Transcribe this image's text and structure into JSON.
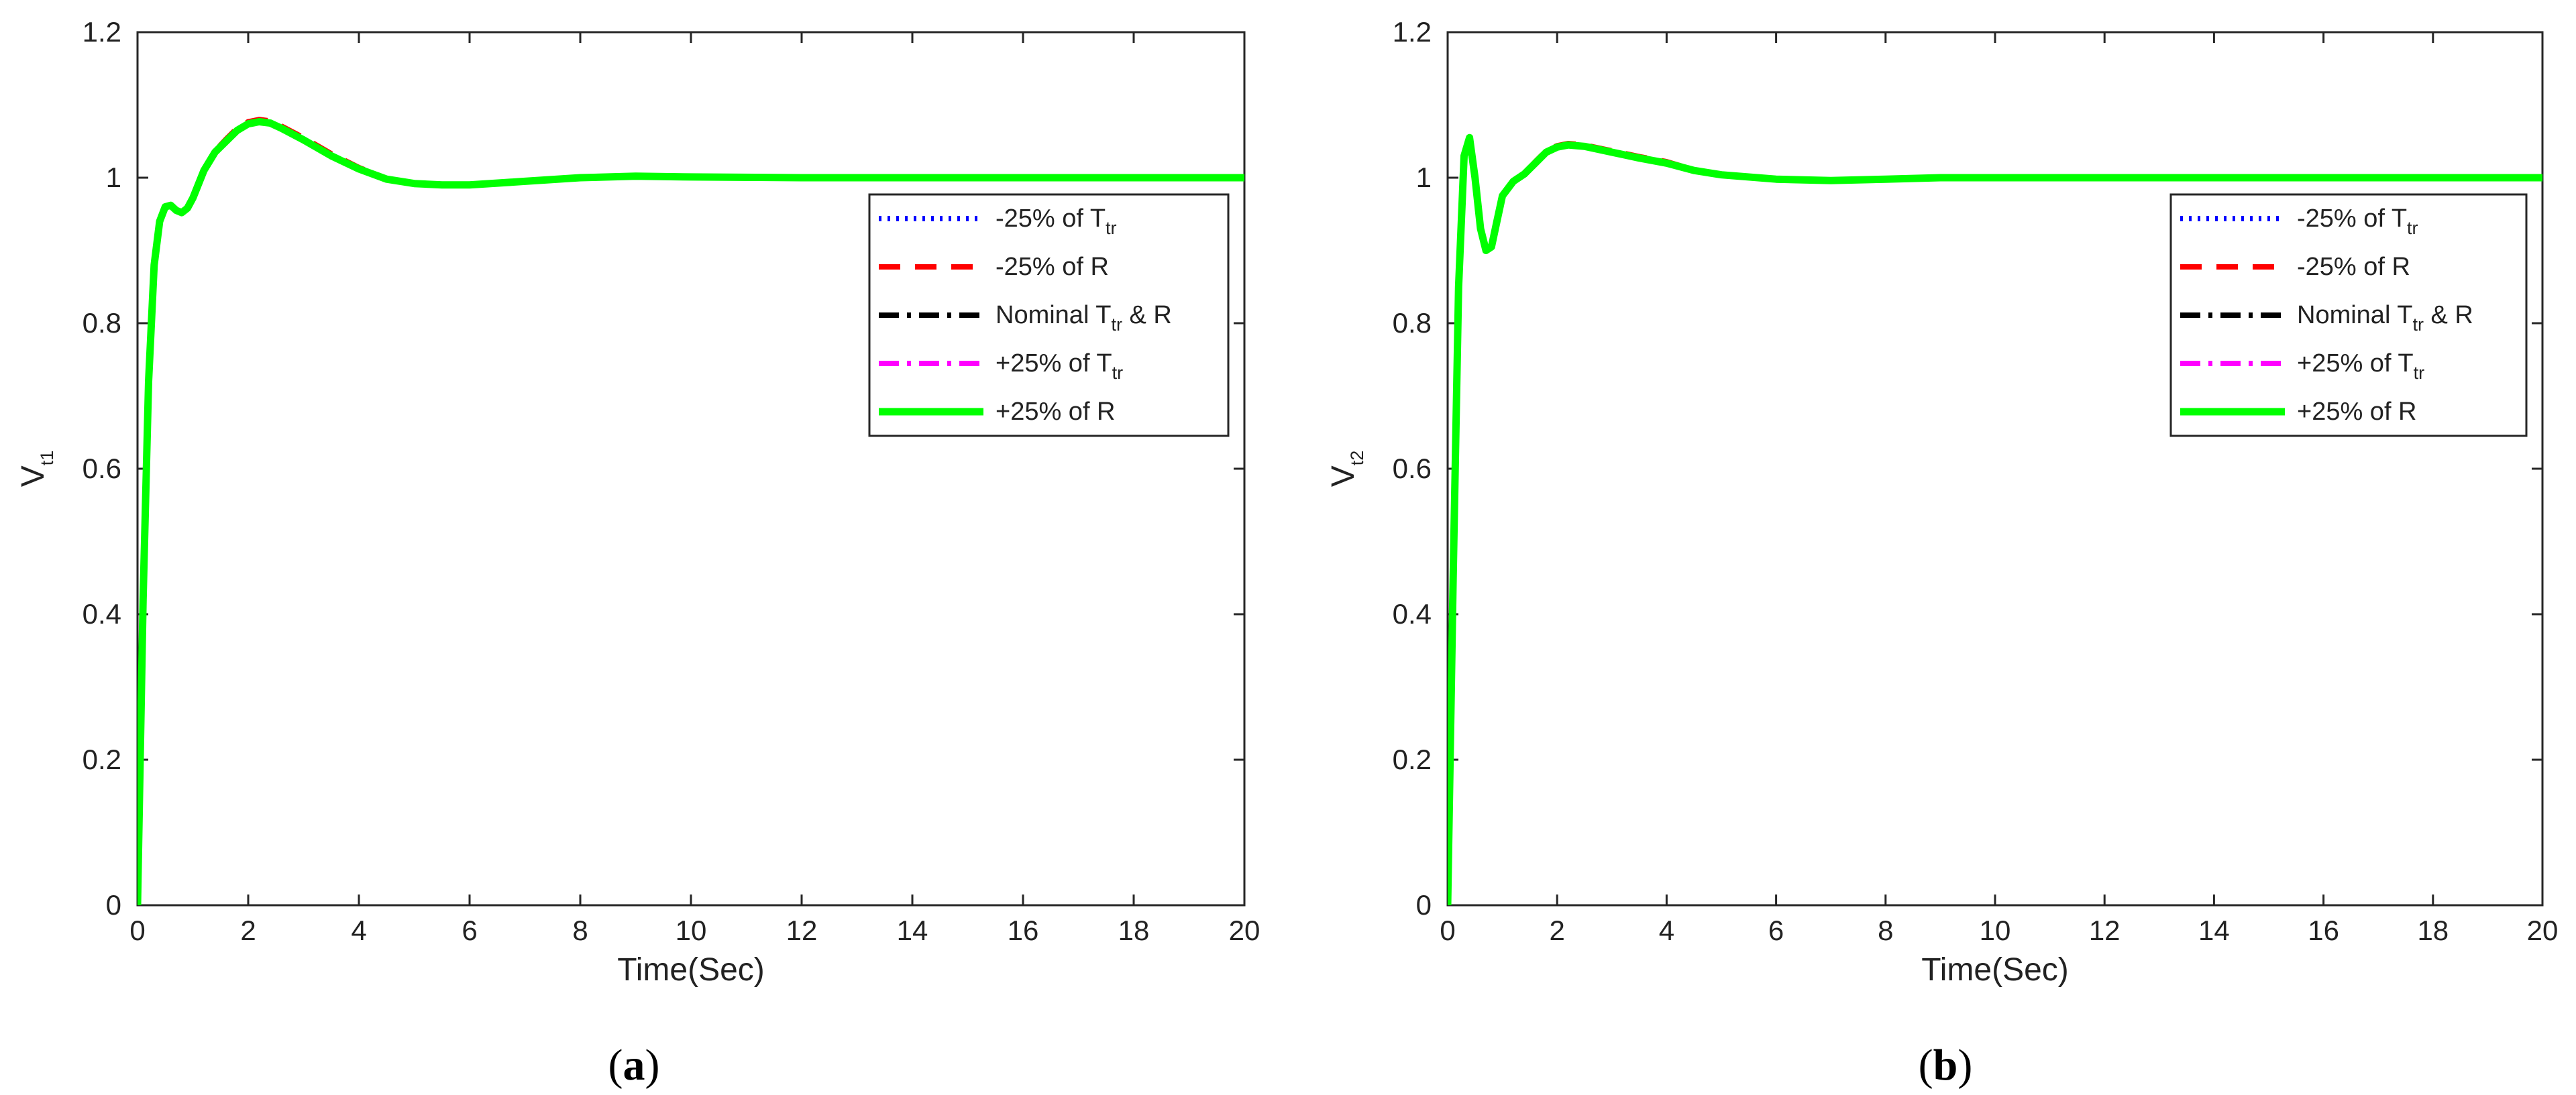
{
  "chart_data": [
    {
      "type": "line",
      "panel_label": "a",
      "xlabel": "Time(Sec)",
      "ylabel": {
        "main": "V",
        "sub": "t1"
      },
      "xlim": [
        0,
        20
      ],
      "ylim": [
        0,
        1.2
      ],
      "xticks": [
        0,
        2,
        4,
        6,
        8,
        10,
        12,
        14,
        16,
        18,
        20
      ],
      "yticks": [
        0,
        0.2,
        0.4,
        0.6,
        0.8,
        1,
        1.2
      ],
      "ytick_labels": [
        "0",
        "0.2",
        "0.4",
        "0.6",
        "0.8",
        "1",
        "1.2"
      ],
      "grid": false,
      "legend_position": "right",
      "legend": [
        {
          "main": "-25% of T",
          "sub": "tr",
          "suffix": "",
          "color": "#0000ff",
          "style": "dotted"
        },
        {
          "main": "-25% of R",
          "sub": "",
          "suffix": "",
          "color": "#ff0000",
          "style": "dashed"
        },
        {
          "main": "Nominal T",
          "sub": "tr",
          "suffix": " & R",
          "color": "#000000",
          "style": "dashdot"
        },
        {
          "main": "+25% of T",
          "sub": "tr",
          "suffix": "",
          "color": "#ff00ff",
          "style": "dashdot"
        },
        {
          "main": "+25% of R",
          "sub": "",
          "suffix": "",
          "color": "#00ff00",
          "style": "solid"
        }
      ],
      "series": [
        {
          "color": "#0000ff",
          "style": "dotted",
          "x": [
            0,
            0.1,
            0.2,
            0.3,
            0.4,
            0.5,
            0.6,
            0.7,
            0.8,
            0.9,
            1.0,
            1.2,
            1.4,
            1.6,
            1.8,
            2.0,
            2.2,
            2.4,
            2.6,
            3.0,
            3.5,
            4.0,
            4.5,
            5.0,
            5.5,
            6.0,
            7.0,
            8.0,
            9.0,
            10,
            12,
            14,
            16,
            18,
            20
          ],
          "y": [
            0,
            0.42,
            0.72,
            0.88,
            0.94,
            0.96,
            0.962,
            0.955,
            0.952,
            0.958,
            0.972,
            1.01,
            1.035,
            1.05,
            1.065,
            1.074,
            1.077,
            1.075,
            1.068,
            1.052,
            1.03,
            1.012,
            0.998,
            0.992,
            0.99,
            0.99,
            0.995,
            1.0,
            1.002,
            1.001,
            1.0,
            1.0,
            1.0,
            1.0,
            1.0
          ]
        },
        {
          "color": "#ff0000",
          "style": "dashed",
          "x": [
            0,
            0.1,
            0.2,
            0.3,
            0.4,
            0.5,
            0.6,
            0.7,
            0.8,
            0.9,
            1.0,
            1.2,
            1.4,
            1.6,
            1.8,
            2.0,
            2.2,
            2.4,
            2.6,
            3.0,
            3.5,
            4.0,
            4.5,
            5.0,
            5.5,
            6.0,
            7.0,
            8.0,
            9.0,
            10,
            12,
            14,
            16,
            18,
            20
          ],
          "y": [
            0,
            0.42,
            0.72,
            0.88,
            0.94,
            0.96,
            0.962,
            0.955,
            0.952,
            0.958,
            0.972,
            1.01,
            1.037,
            1.053,
            1.068,
            1.077,
            1.08,
            1.078,
            1.071,
            1.055,
            1.033,
            1.014,
            0.999,
            0.992,
            0.99,
            0.99,
            0.995,
            1.0,
            1.002,
            1.001,
            1.0,
            1.0,
            1.0,
            1.0,
            1.0
          ]
        },
        {
          "color": "#000000",
          "style": "dashdot",
          "x": [
            0,
            0.1,
            0.2,
            0.3,
            0.4,
            0.5,
            0.6,
            0.7,
            0.8,
            0.9,
            1.0,
            1.2,
            1.4,
            1.6,
            1.8,
            2.0,
            2.2,
            2.4,
            2.6,
            3.0,
            3.5,
            4.0,
            4.5,
            5.0,
            5.5,
            6.0,
            7.0,
            8.0,
            9.0,
            10,
            12,
            14,
            16,
            18,
            20
          ],
          "y": [
            0,
            0.42,
            0.72,
            0.88,
            0.94,
            0.96,
            0.962,
            0.955,
            0.952,
            0.958,
            0.972,
            1.01,
            1.035,
            1.051,
            1.066,
            1.075,
            1.078,
            1.076,
            1.069,
            1.053,
            1.031,
            1.013,
            0.998,
            0.992,
            0.99,
            0.99,
            0.995,
            1.0,
            1.002,
            1.001,
            1.0,
            1.0,
            1.0,
            1.0,
            1.0
          ]
        },
        {
          "color": "#ff00ff",
          "style": "dashdot",
          "x": [
            0,
            0.1,
            0.2,
            0.3,
            0.4,
            0.5,
            0.6,
            0.7,
            0.8,
            0.9,
            1.0,
            1.2,
            1.4,
            1.6,
            1.8,
            2.0,
            2.2,
            2.4,
            2.6,
            3.0,
            3.5,
            4.0,
            4.5,
            5.0,
            5.5,
            6.0,
            7.0,
            8.0,
            9.0,
            10,
            12,
            14,
            16,
            18,
            20
          ],
          "y": [
            0,
            0.42,
            0.72,
            0.88,
            0.94,
            0.96,
            0.962,
            0.955,
            0.952,
            0.958,
            0.972,
            1.01,
            1.034,
            1.05,
            1.064,
            1.073,
            1.076,
            1.074,
            1.067,
            1.051,
            1.029,
            1.011,
            0.997,
            0.992,
            0.99,
            0.99,
            0.995,
            1.0,
            1.002,
            1.001,
            1.0,
            1.0,
            1.0,
            1.0,
            1.0
          ]
        },
        {
          "color": "#00ff00",
          "style": "solid",
          "x": [
            0,
            0.1,
            0.2,
            0.3,
            0.4,
            0.5,
            0.6,
            0.7,
            0.8,
            0.9,
            1.0,
            1.2,
            1.4,
            1.6,
            1.8,
            2.0,
            2.2,
            2.4,
            2.6,
            3.0,
            3.5,
            4.0,
            4.5,
            5.0,
            5.5,
            6.0,
            7.0,
            8.0,
            9.0,
            10,
            12,
            14,
            16,
            18,
            20
          ],
          "y": [
            0,
            0.42,
            0.72,
            0.88,
            0.94,
            0.96,
            0.962,
            0.955,
            0.952,
            0.958,
            0.972,
            1.01,
            1.035,
            1.05,
            1.065,
            1.074,
            1.077,
            1.075,
            1.068,
            1.052,
            1.03,
            1.012,
            0.998,
            0.992,
            0.99,
            0.99,
            0.995,
            1.0,
            1.002,
            1.001,
            1.0,
            1.0,
            1.0,
            1.0,
            1.0
          ]
        }
      ]
    },
    {
      "type": "line",
      "panel_label": "b",
      "xlabel": "Time(Sec)",
      "ylabel": {
        "main": "V",
        "sub": "t2"
      },
      "xlim": [
        0,
        20
      ],
      "ylim": [
        0,
        1.2
      ],
      "xticks": [
        0,
        2,
        4,
        6,
        8,
        10,
        12,
        14,
        16,
        18,
        20
      ],
      "yticks": [
        0,
        0.2,
        0.4,
        0.6,
        0.8,
        1,
        1.2
      ],
      "ytick_labels": [
        "0",
        "0.2",
        "0.4",
        "0.6",
        "0.8",
        "1",
        "1.2"
      ],
      "grid": false,
      "legend_position": "right",
      "legend": [
        {
          "main": "-25% of T",
          "sub": "tr",
          "suffix": "",
          "color": "#0000ff",
          "style": "dotted"
        },
        {
          "main": "-25% of R",
          "sub": "",
          "suffix": "",
          "color": "#ff0000",
          "style": "dashed"
        },
        {
          "main": "Nominal T",
          "sub": "tr",
          "suffix": " & R",
          "color": "#000000",
          "style": "dashdot"
        },
        {
          "main": "+25% of T",
          "sub": "tr",
          "suffix": "",
          "color": "#ff00ff",
          "style": "dashdot"
        },
        {
          "main": "+25% of R",
          "sub": "",
          "suffix": "",
          "color": "#00ff00",
          "style": "solid"
        }
      ],
      "series": [
        {
          "color": "#0000ff",
          "style": "dotted",
          "x": [
            0,
            0.1,
            0.2,
            0.3,
            0.4,
            0.5,
            0.6,
            0.7,
            0.8,
            0.9,
            1.0,
            1.2,
            1.4,
            1.6,
            1.8,
            2.0,
            2.2,
            2.5,
            3.0,
            3.5,
            4.0,
            4.5,
            5.0,
            6.0,
            7.0,
            8.0,
            9.0,
            10,
            12,
            14,
            16,
            18,
            20
          ],
          "y": [
            0,
            0.45,
            0.85,
            1.03,
            1.055,
            1.0,
            0.93,
            0.9,
            0.905,
            0.94,
            0.975,
            0.995,
            1.005,
            1.02,
            1.035,
            1.042,
            1.045,
            1.043,
            1.035,
            1.027,
            1.02,
            1.01,
            1.004,
            0.998,
            0.996,
            0.998,
            1.0,
            1.0,
            1.0,
            1.0,
            1.0,
            1.0,
            1.0
          ]
        },
        {
          "color": "#ff0000",
          "style": "dashed",
          "x": [
            0,
            0.1,
            0.2,
            0.3,
            0.4,
            0.5,
            0.6,
            0.7,
            0.8,
            0.9,
            1.0,
            1.2,
            1.4,
            1.6,
            1.8,
            2.0,
            2.2,
            2.5,
            3.0,
            3.5,
            4.0,
            4.5,
            5.0,
            6.0,
            7.0,
            8.0,
            9.0,
            10,
            12,
            14,
            16,
            18,
            20
          ],
          "y": [
            0,
            0.45,
            0.85,
            1.03,
            1.055,
            1.0,
            0.93,
            0.9,
            0.905,
            0.94,
            0.975,
            0.995,
            1.006,
            1.022,
            1.037,
            1.044,
            1.047,
            1.045,
            1.037,
            1.029,
            1.022,
            1.011,
            1.005,
            0.998,
            0.996,
            0.998,
            1.0,
            1.0,
            1.0,
            1.0,
            1.0,
            1.0,
            1.0
          ]
        },
        {
          "color": "#000000",
          "style": "dashdot",
          "x": [
            0,
            0.1,
            0.2,
            0.3,
            0.4,
            0.5,
            0.6,
            0.7,
            0.8,
            0.9,
            1.0,
            1.2,
            1.4,
            1.6,
            1.8,
            2.0,
            2.2,
            2.5,
            3.0,
            3.5,
            4.0,
            4.5,
            5.0,
            6.0,
            7.0,
            8.0,
            9.0,
            10,
            12,
            14,
            16,
            18,
            20
          ],
          "y": [
            0,
            0.45,
            0.85,
            1.03,
            1.055,
            1.0,
            0.93,
            0.9,
            0.905,
            0.94,
            0.975,
            0.995,
            1.005,
            1.021,
            1.036,
            1.043,
            1.046,
            1.044,
            1.036,
            1.028,
            1.021,
            1.01,
            1.004,
            0.998,
            0.996,
            0.998,
            1.0,
            1.0,
            1.0,
            1.0,
            1.0,
            1.0,
            1.0
          ]
        },
        {
          "color": "#ff00ff",
          "style": "dashdot",
          "x": [
            0,
            0.1,
            0.2,
            0.3,
            0.4,
            0.5,
            0.6,
            0.7,
            0.8,
            0.9,
            1.0,
            1.2,
            1.4,
            1.6,
            1.8,
            2.0,
            2.2,
            2.5,
            3.0,
            3.5,
            4.0,
            4.5,
            5.0,
            6.0,
            7.0,
            8.0,
            9.0,
            10,
            12,
            14,
            16,
            18,
            20
          ],
          "y": [
            0,
            0.45,
            0.85,
            1.03,
            1.055,
            1.0,
            0.93,
            0.9,
            0.905,
            0.94,
            0.975,
            0.995,
            1.004,
            1.019,
            1.034,
            1.041,
            1.044,
            1.042,
            1.034,
            1.026,
            1.019,
            1.009,
            1.003,
            0.998,
            0.996,
            0.998,
            1.0,
            1.0,
            1.0,
            1.0,
            1.0,
            1.0,
            1.0
          ]
        },
        {
          "color": "#00ff00",
          "style": "solid",
          "x": [
            0,
            0.1,
            0.2,
            0.3,
            0.4,
            0.5,
            0.6,
            0.7,
            0.8,
            0.9,
            1.0,
            1.2,
            1.4,
            1.6,
            1.8,
            2.0,
            2.2,
            2.5,
            3.0,
            3.5,
            4.0,
            4.5,
            5.0,
            6.0,
            7.0,
            8.0,
            9.0,
            10,
            12,
            14,
            16,
            18,
            20
          ],
          "y": [
            0,
            0.45,
            0.85,
            1.03,
            1.055,
            1.0,
            0.93,
            0.9,
            0.905,
            0.94,
            0.975,
            0.995,
            1.005,
            1.02,
            1.035,
            1.042,
            1.045,
            1.043,
            1.035,
            1.027,
            1.02,
            1.01,
            1.004,
            0.998,
            0.996,
            0.998,
            1.0,
            1.0,
            1.0,
            1.0,
            1.0,
            1.0,
            1.0
          ]
        }
      ]
    }
  ]
}
